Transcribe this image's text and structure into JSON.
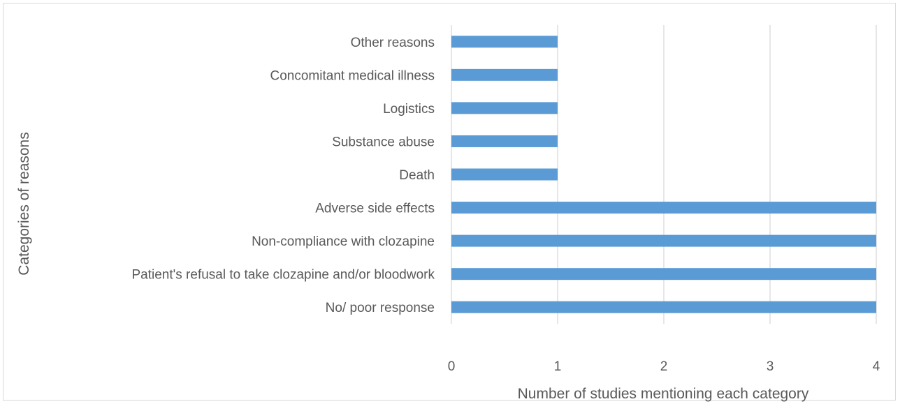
{
  "chart_data": {
    "type": "bar",
    "orientation": "horizontal",
    "categories": [
      "No/ poor response",
      "Patient's refusal to take clozapine and/or bloodwork",
      "Non-compliance with clozapine",
      "Adverse side effects",
      "Death",
      "Substance abuse",
      "Logistics",
      "Concomitant medical illness",
      "Other reasons"
    ],
    "values": [
      4,
      4,
      4,
      4,
      1,
      1,
      1,
      1,
      1
    ],
    "xlabel": "Number of studies mentioning each category",
    "ylabel": "Categories of reasons",
    "xlim": [
      0,
      4
    ],
    "xticks": [
      0,
      1,
      2,
      3,
      4
    ],
    "grid": "vertical",
    "legend": "none",
    "bar_color": "#5b9bd5",
    "grid_color": "#d9d9d9"
  }
}
